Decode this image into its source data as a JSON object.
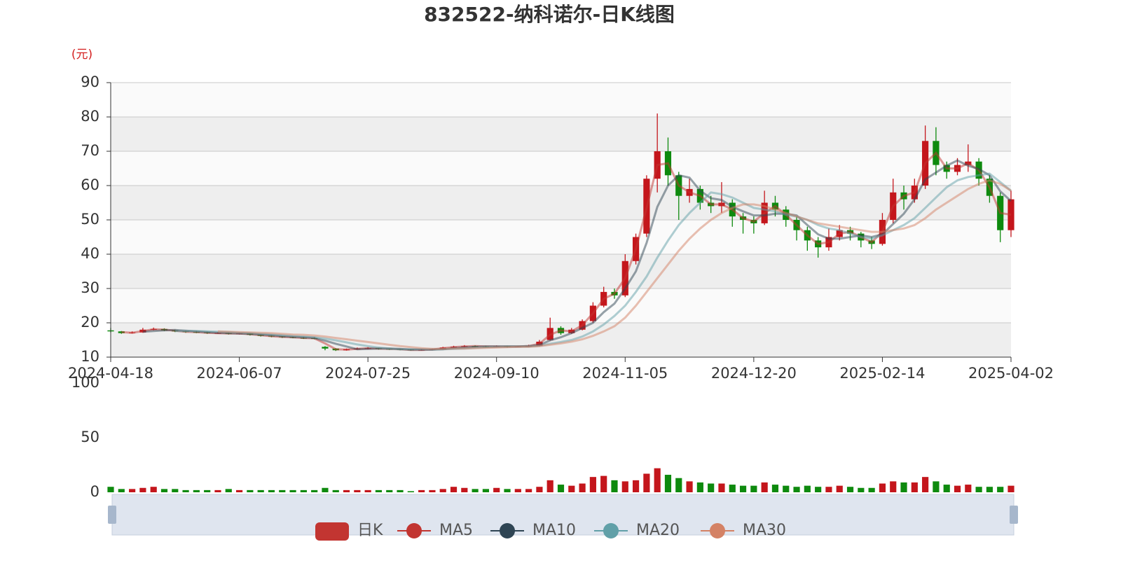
{
  "chart_data": {
    "type": "candlestick",
    "title": "832522-纳科诺尔-日K线图",
    "y_unit": "(元)",
    "categories": [
      "2024-04-18",
      null,
      null,
      null,
      null,
      null,
      null,
      null,
      null,
      null,
      null,
      null,
      "2024-06-07",
      null,
      null,
      null,
      null,
      null,
      null,
      null,
      null,
      null,
      null,
      null,
      "2024-07-25",
      null,
      null,
      null,
      null,
      null,
      null,
      null,
      null,
      null,
      null,
      null,
      "2024-09-10",
      null,
      null,
      null,
      null,
      null,
      null,
      null,
      null,
      null,
      null,
      null,
      "2024-11-05",
      null,
      null,
      null,
      null,
      null,
      null,
      null,
      null,
      null,
      null,
      null,
      "2024-12-20",
      null,
      null,
      null,
      null,
      null,
      null,
      null,
      null,
      null,
      null,
      null,
      "2025-02-14",
      null,
      null,
      null,
      null,
      null,
      null,
      null,
      null,
      null,
      null,
      null,
      "2025-04-02"
    ],
    "ylim": [
      10,
      90
    ],
    "yticks": [
      10,
      20,
      30,
      40,
      50,
      60,
      70,
      80,
      90
    ],
    "grid": true,
    "up_color": "#c4161c",
    "down_color": "#0e8a0e",
    "series": [
      {
        "name": "日K",
        "color": "#c23531",
        "values": [
          [
            17.8,
            17.5,
            17.2,
            18.5
          ],
          [
            17.5,
            17.0,
            16.8,
            17.6
          ],
          [
            17.0,
            17.2,
            16.9,
            17.5
          ],
          [
            17.2,
            18.0,
            17.1,
            18.5
          ],
          [
            18.0,
            18.2,
            17.8,
            18.6
          ],
          [
            18.2,
            17.8,
            17.6,
            18.4
          ],
          [
            17.8,
            17.5,
            17.3,
            18.0
          ],
          [
            17.5,
            17.3,
            17.1,
            17.7
          ],
          [
            17.3,
            17.2,
            17.0,
            17.6
          ],
          [
            17.2,
            17.0,
            16.8,
            17.4
          ],
          [
            16.9,
            17.0,
            16.8,
            17.3
          ],
          [
            17.0,
            16.8,
            16.6,
            17.1
          ],
          [
            16.8,
            16.9,
            16.6,
            17.1
          ],
          [
            16.9,
            16.5,
            16.3,
            17.0
          ],
          [
            16.5,
            16.2,
            16.0,
            16.6
          ],
          [
            16.2,
            16.0,
            15.8,
            16.4
          ],
          [
            16.0,
            15.8,
            15.6,
            16.1
          ],
          [
            15.8,
            15.7,
            15.5,
            16.0
          ],
          [
            15.6,
            15.5,
            15.3,
            15.9
          ],
          [
            15.5,
            15.4,
            15.2,
            15.8
          ],
          [
            13.0,
            12.5,
            12.0,
            13.2
          ],
          [
            12.5,
            12.0,
            11.8,
            12.6
          ],
          [
            12.0,
            12.3,
            11.9,
            12.5
          ],
          [
            12.3,
            12.5,
            12.2,
            12.8
          ],
          [
            12.5,
            12.6,
            12.3,
            12.9
          ],
          [
            12.6,
            12.4,
            12.2,
            12.7
          ],
          [
            12.4,
            12.3,
            12.1,
            12.5
          ],
          [
            12.3,
            12.2,
            12.0,
            12.4
          ],
          [
            12.2,
            12.0,
            11.9,
            12.3
          ],
          [
            12.0,
            12.1,
            11.9,
            12.3
          ],
          [
            12.1,
            12.3,
            12.0,
            12.5
          ],
          [
            12.3,
            12.8,
            12.2,
            13.0
          ],
          [
            12.8,
            13.0,
            12.7,
            13.3
          ],
          [
            13.0,
            13.2,
            12.9,
            13.5
          ],
          [
            13.2,
            13.1,
            12.9,
            13.4
          ],
          [
            13.1,
            13.0,
            12.8,
            13.3
          ],
          [
            13.0,
            13.2,
            12.9,
            13.4
          ],
          [
            13.2,
            13.0,
            12.8,
            13.3
          ],
          [
            13.0,
            13.1,
            12.9,
            13.3
          ],
          [
            13.1,
            13.3,
            13.0,
            13.6
          ],
          [
            13.3,
            14.5,
            13.2,
            15.0
          ],
          [
            15.0,
            18.5,
            14.8,
            21.5
          ],
          [
            18.5,
            17.0,
            16.5,
            19.0
          ],
          [
            17.0,
            18.0,
            16.8,
            18.5
          ],
          [
            18.0,
            20.5,
            17.8,
            21.0
          ],
          [
            20.5,
            25.0,
            20.0,
            26.0
          ],
          [
            25.0,
            29.0,
            24.5,
            30.5
          ],
          [
            29.0,
            28.0,
            27.0,
            30.0
          ],
          [
            28.0,
            38.0,
            27.5,
            40.0
          ],
          [
            38.0,
            45.0,
            37.0,
            46.0
          ],
          [
            46.0,
            62.0,
            45.0,
            63.0
          ],
          [
            62.0,
            70.0,
            58.0,
            81.0
          ],
          [
            70.0,
            63.0,
            60.0,
            74.0
          ],
          [
            63.0,
            57.0,
            50.0,
            64.0
          ],
          [
            57.0,
            59.0,
            55.0,
            62.0
          ],
          [
            59.0,
            55.0,
            53.0,
            60.0
          ],
          [
            55.0,
            54.0,
            52.0,
            57.0
          ],
          [
            54.0,
            55.0,
            52.0,
            61.0
          ],
          [
            55.0,
            51.0,
            48.0,
            56.0
          ],
          [
            51.0,
            50.0,
            46.0,
            52.0
          ],
          [
            50.0,
            49.0,
            46.0,
            51.0
          ],
          [
            49.0,
            55.0,
            48.5,
            58.5
          ],
          [
            55.0,
            53.0,
            51.0,
            57.0
          ],
          [
            53.0,
            50.0,
            48.0,
            54.0
          ],
          [
            50.0,
            47.0,
            44.0,
            51.0
          ],
          [
            47.0,
            44.0,
            41.0,
            48.0
          ],
          [
            44.0,
            42.0,
            39.0,
            45.0
          ],
          [
            42.0,
            45.0,
            41.0,
            47.5
          ],
          [
            45.0,
            47.0,
            44.0,
            48.5
          ],
          [
            47.0,
            46.0,
            44.0,
            48.0
          ],
          [
            46.0,
            44.0,
            42.0,
            46.5
          ],
          [
            44.0,
            43.0,
            41.5,
            45.0
          ],
          [
            43.0,
            50.0,
            42.5,
            52.0
          ],
          [
            50.0,
            58.0,
            49.0,
            62.0
          ],
          [
            58.0,
            56.0,
            53.0,
            60.0
          ],
          [
            56.0,
            60.0,
            55.0,
            62.0
          ],
          [
            60.0,
            73.0,
            59.0,
            77.5
          ],
          [
            73.0,
            66.0,
            63.0,
            77.0
          ],
          [
            66.0,
            64.0,
            62.0,
            67.0
          ],
          [
            64.0,
            66.0,
            63.0,
            68.0
          ],
          [
            66.0,
            67.0,
            64.0,
            72.0
          ],
          [
            67.0,
            62.0,
            60.0,
            68.0
          ],
          [
            62.0,
            57.0,
            55.0,
            63.0
          ],
          [
            57.0,
            47.0,
            43.5,
            58.0
          ],
          [
            47.0,
            56.0,
            45.0,
            58.5
          ]
        ]
      },
      {
        "name": "MA5",
        "color": "#c23531",
        "values": [
          null,
          17.3,
          17.1,
          17.6,
          18.1,
          18.0,
          17.7,
          17.4,
          17.3,
          17.1,
          17.0,
          16.9,
          16.9,
          16.7,
          16.4,
          16.1,
          15.9,
          15.8,
          15.6,
          15.5,
          14.0,
          12.3,
          12.2,
          12.4,
          12.6,
          12.5,
          12.4,
          12.3,
          12.1,
          12.1,
          12.2,
          12.6,
          12.9,
          13.1,
          13.2,
          13.1,
          13.1,
          13.1,
          13.1,
          13.2,
          13.9,
          16.5,
          17.8,
          17.5,
          19.3,
          22.8,
          27.0,
          28.5,
          33.0,
          41.5,
          53.5,
          66.0,
          66.5,
          60.0,
          58.0,
          57.0,
          54.5,
          54.5,
          53.0,
          50.5,
          49.5,
          52.0,
          54.0,
          51.5,
          48.5,
          45.5,
          43.0,
          43.5,
          46.0,
          46.5,
          45.0,
          43.5,
          46.5,
          54.0,
          57.0,
          58.0,
          66.5,
          69.5,
          65.0,
          65.0,
          66.5,
          64.5,
          59.5,
          52.0,
          51.5
        ]
      },
      {
        "name": "MA10",
        "color": "#2f4554",
        "values": [
          null,
          null,
          null,
          17.4,
          17.6,
          17.8,
          17.9,
          17.7,
          17.5,
          17.3,
          17.1,
          17.0,
          16.9,
          16.8,
          16.6,
          16.4,
          16.1,
          15.9,
          15.8,
          15.6,
          14.8,
          13.9,
          13.1,
          12.3,
          12.4,
          12.5,
          12.5,
          12.4,
          12.2,
          12.2,
          12.2,
          12.3,
          12.6,
          12.8,
          13.0,
          13.1,
          13.1,
          13.1,
          13.1,
          13.2,
          13.5,
          14.9,
          15.8,
          17.0,
          18.5,
          20.0,
          23.1,
          25.6,
          30.0,
          35.0,
          43.3,
          53.8,
          60.0,
          63.0,
          62.3,
          58.5,
          56.3,
          55.8,
          53.8,
          52.5,
          51.3,
          51.3,
          51.8,
          51.8,
          51.3,
          48.5,
          45.8,
          44.5,
          44.5,
          45.0,
          45.5,
          45.0,
          45.8,
          48.8,
          51.8,
          56.0,
          61.8,
          63.8,
          65.8,
          67.3,
          65.8,
          64.8,
          63.0,
          58.3,
          55.5
        ]
      },
      {
        "name": "MA20",
        "color": "#61a0a8",
        "values": [
          null,
          null,
          null,
          null,
          null,
          null,
          17.6,
          17.6,
          17.6,
          17.5,
          17.4,
          17.3,
          17.1,
          17.0,
          16.8,
          16.6,
          16.4,
          16.2,
          16.0,
          15.8,
          15.4,
          14.9,
          14.3,
          13.7,
          13.2,
          12.8,
          12.5,
          12.3,
          12.3,
          12.3,
          12.2,
          12.3,
          12.4,
          12.5,
          12.7,
          12.9,
          13.0,
          13.1,
          13.1,
          13.1,
          13.3,
          13.9,
          14.4,
          15.0,
          16.0,
          17.5,
          19.5,
          22.0,
          25.0,
          29.0,
          33.5,
          39.0,
          44.0,
          48.5,
          52.0,
          55.0,
          58.0,
          57.5,
          56.5,
          55.0,
          53.5,
          53.0,
          52.5,
          51.5,
          51.0,
          50.0,
          48.5,
          47.5,
          47.0,
          46.0,
          45.0,
          44.5,
          45.5,
          47.0,
          48.5,
          50.5,
          53.5,
          56.5,
          59.5,
          61.5,
          62.5,
          63.0,
          63.5,
          61.0,
          58.5
        ]
      },
      {
        "name": "MA30",
        "color": "#d48265",
        "values": [
          null,
          null,
          null,
          null,
          null,
          null,
          null,
          null,
          null,
          null,
          17.5,
          17.4,
          17.3,
          17.2,
          17.1,
          17.0,
          16.8,
          16.6,
          16.5,
          16.3,
          16.0,
          15.6,
          15.2,
          14.8,
          14.4,
          14.0,
          13.6,
          13.2,
          12.9,
          12.6,
          12.4,
          12.4,
          12.5,
          12.5,
          12.6,
          12.7,
          12.8,
          12.9,
          13.0,
          13.0,
          13.2,
          13.6,
          14.0,
          14.5,
          15.2,
          16.2,
          17.5,
          19.0,
          21.5,
          25.0,
          29.0,
          33.0,
          37.0,
          41.0,
          44.5,
          47.5,
          50.0,
          52.0,
          53.5,
          54.5,
          54.5,
          54.0,
          53.0,
          52.0,
          51.0,
          50.0,
          49.0,
          48.5,
          48.0,
          47.5,
          47.0,
          46.5,
          46.5,
          47.0,
          47.5,
          48.5,
          50.5,
          53.0,
          55.0,
          57.0,
          59.0,
          60.5,
          61.5,
          60.5,
          58.5
        ]
      }
    ],
    "volume": {
      "ylim": [
        0,
        100
      ],
      "yticks": [
        0,
        50,
        100
      ],
      "values": [
        5,
        3,
        3,
        4,
        5,
        3,
        3,
        2,
        2,
        2,
        2,
        3,
        2,
        2,
        2,
        2,
        2,
        2,
        2,
        2,
        4,
        2,
        2,
        2,
        2,
        2,
        2,
        2,
        1,
        2,
        2,
        3,
        5,
        4,
        3,
        3,
        4,
        3,
        3,
        3,
        5,
        11,
        7,
        6,
        8,
        14,
        15,
        11,
        10,
        11,
        17,
        22,
        16,
        13,
        10,
        9,
        8,
        8,
        7,
        6,
        6,
        9,
        7,
        6,
        5,
        6,
        5,
        5,
        6,
        5,
        4,
        4,
        8,
        10,
        9,
        9,
        14,
        10,
        7,
        6,
        7,
        5,
        5,
        5,
        6
      ]
    }
  }
}
